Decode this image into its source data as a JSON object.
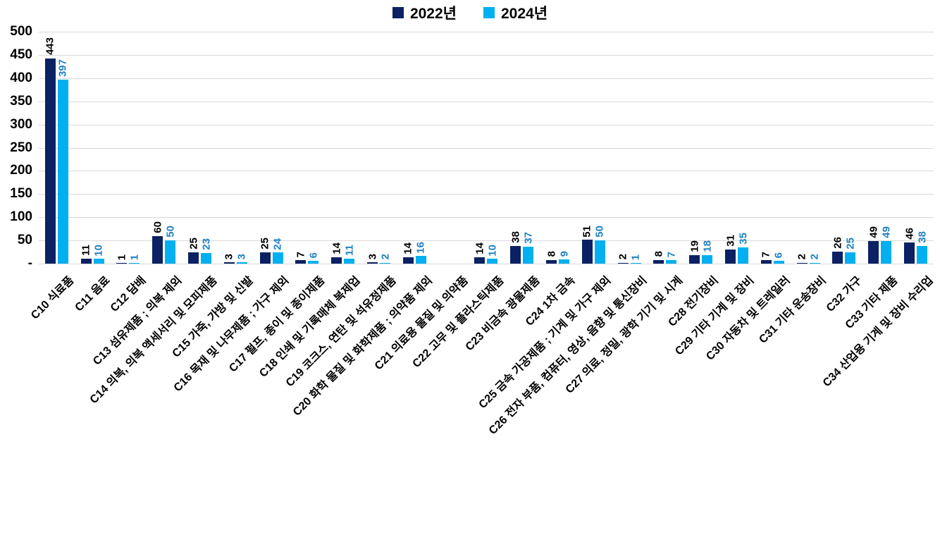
{
  "chart_data": {
    "type": "bar",
    "title": "",
    "categories": [
      "C10 식료품",
      "C11 음료",
      "C12 담배",
      "C13 섬유제품 ; 의복 제외",
      "C14 의복, 의복 액세서리 및 모피제품",
      "C15 가죽, 가방 및 신발",
      "C16 목재 및 나무제품 ; 가구 제외",
      "C17 펄프, 종이 및 종이제품",
      "C18 인쇄 및 기록매체 복제업",
      "C19 코크스, 연탄 및 석유정제품",
      "C20 화학 물질 및 화학제품 ; 의약품 제외",
      "C21 의료용 물질 및 의약품",
      "C22 고무 및 플라스틱제품",
      "C23 비금속 광물제품",
      "C24 1차 금속",
      "C25 금속 가공제품 ; 기계 및 가구 제외",
      "C26 전자 부품, 컴퓨터, 영상, 음향 및 통신장비",
      "C27 의료, 정밀, 광학 기기 및 시계",
      "C28 전기장비",
      "C29 기타 기계 및 장비",
      "C30 자동차 및 트레일러",
      "C31 기타 운송장비",
      "C32 가구",
      "C33 기타 제품",
      "C34 산업용 기계 및 장비 수리업"
    ],
    "series": [
      {
        "name": "2022년",
        "color": "#0b2163",
        "label_color": "#000000",
        "values": [
          443,
          11,
          1,
          60,
          25,
          3,
          25,
          7,
          14,
          3,
          14,
          0,
          14,
          38,
          8,
          51,
          2,
          8,
          19,
          31,
          7,
          2,
          26,
          49,
          46
        ]
      },
      {
        "name": "2024년",
        "color": "#00b0f0",
        "label_color": "#1e81c4",
        "values": [
          397,
          10,
          1,
          50,
          23,
          3,
          24,
          6,
          11,
          2,
          16,
          0,
          10,
          37,
          9,
          50,
          1,
          7,
          18,
          35,
          6,
          2,
          25,
          49,
          38
        ]
      }
    ],
    "y_axis": {
      "min": 0,
      "max": 500,
      "step": 50,
      "tick_labels": [
        "-",
        "50",
        "100",
        "150",
        "200",
        "250",
        "300",
        "350",
        "400",
        "450",
        "500"
      ]
    },
    "x_axis": {
      "label_rotation_deg": 45
    },
    "legend_position": "bottom",
    "grid": true,
    "grid_color": "#d9d9d9",
    "background": "#ffffff",
    "value_labels": {
      "orientation": "vertical",
      "show_zero": false
    }
  }
}
